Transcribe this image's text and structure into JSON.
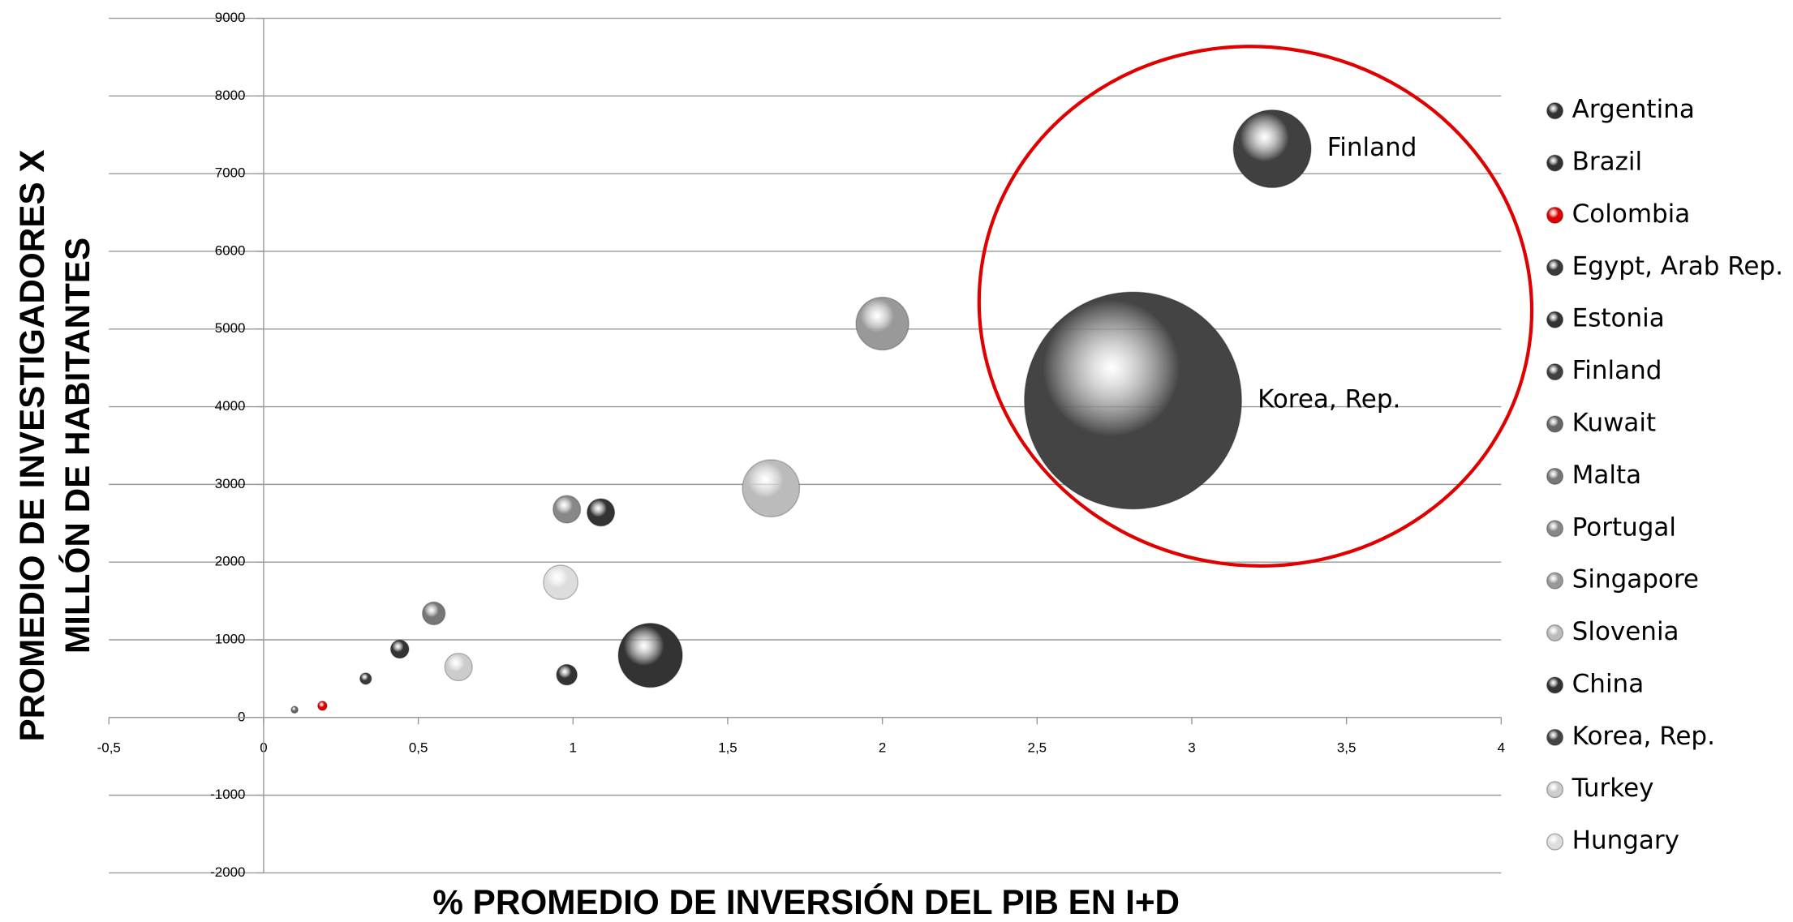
{
  "chart_data": {
    "type": "bubble",
    "xlabel": "% PROMEDIO DE INVERSIÓN DEL PIB EN I+D",
    "ylabel": [
      "PROMEDIO DE INVESTIGADORES X",
      "MILLÓN DE HABITANTES"
    ],
    "xlim": [
      -0.5,
      4
    ],
    "xticks": [
      {
        "value": -0.5,
        "label": "-0,5"
      },
      0,
      {
        "value": 0.5,
        "label": "0,5"
      },
      1,
      {
        "value": 1.5,
        "label": "1,5"
      },
      2,
      {
        "value": 2.5,
        "label": "2,5"
      },
      3,
      {
        "value": 3.5,
        "label": "3,5"
      },
      4
    ],
    "ylim": [
      -2000,
      9000
    ],
    "yticks": [
      -2000,
      -1000,
      0,
      1000,
      2000,
      3000,
      4000,
      5000,
      6000,
      7000,
      8000,
      9000
    ],
    "grid": true,
    "legend": "right",
    "annotated": [
      "Finland",
      "Korea, Rep."
    ],
    "series": [
      {
        "name": "Argentina",
        "color": "#333333",
        "x": [
          0.44
        ],
        "values": [
          880
        ],
        "sizes": [
          0.7
        ]
      },
      {
        "name": "Brazil",
        "color": "#333333",
        "x": [
          0.98
        ],
        "values": [
          550
        ],
        "sizes": [
          0.9
        ]
      },
      {
        "name": "Colombia",
        "color": "#e00000",
        "x": [
          0.19
        ],
        "values": [
          150
        ],
        "sizes": [
          0.18
        ]
      },
      {
        "name": "Egypt, Arab Rep.",
        "color": "#3a3a3a",
        "x": [
          0.33
        ],
        "values": [
          500
        ],
        "sizes": [
          0.28
        ]
      },
      {
        "name": "Estonia",
        "color": "#333333",
        "x": [
          1.09
        ],
        "values": [
          2640
        ],
        "sizes": [
          1.6
        ]
      },
      {
        "name": "Finland",
        "color": "#404040",
        "x": [
          3.26
        ],
        "values": [
          7320
        ],
        "sizes": [
          12.8
        ]
      },
      {
        "name": "Kuwait",
        "color": "#666666",
        "x": [
          0.1
        ],
        "values": [
          100
        ],
        "sizes": [
          0.1
        ]
      },
      {
        "name": "Malta",
        "color": "#777777",
        "x": [
          0.55
        ],
        "values": [
          1340
        ],
        "sizes": [
          1.1
        ]
      },
      {
        "name": "Portugal",
        "color": "#888888",
        "x": [
          0.98
        ],
        "values": [
          2680
        ],
        "sizes": [
          1.6
        ]
      },
      {
        "name": "Singapore",
        "color": "#999999",
        "x": [
          2.0
        ],
        "values": [
          5070
        ],
        "sizes": [
          5.9
        ]
      },
      {
        "name": "Slovenia",
        "color": "#bbbbbb",
        "x": [
          1.64
        ],
        "values": [
          2950
        ],
        "sizes": [
          6.9
        ]
      },
      {
        "name": "China",
        "color": "#333333",
        "x": [
          1.25
        ],
        "values": [
          800
        ],
        "sizes": [
          8.7
        ]
      },
      {
        "name": "Korea, Rep.",
        "color": "#444444",
        "x": [
          2.81
        ],
        "values": [
          4080
        ],
        "sizes": [
          100
        ]
      },
      {
        "name": "Turkey",
        "color": "#cccccc",
        "x": [
          0.63
        ],
        "values": [
          650
        ],
        "sizes": [
          1.6
        ]
      },
      {
        "name": "Hungary",
        "color": "#dddddd",
        "x": [
          0.96
        ],
        "values": [
          1740
        ],
        "sizes": [
          2.5
        ]
      }
    ]
  }
}
